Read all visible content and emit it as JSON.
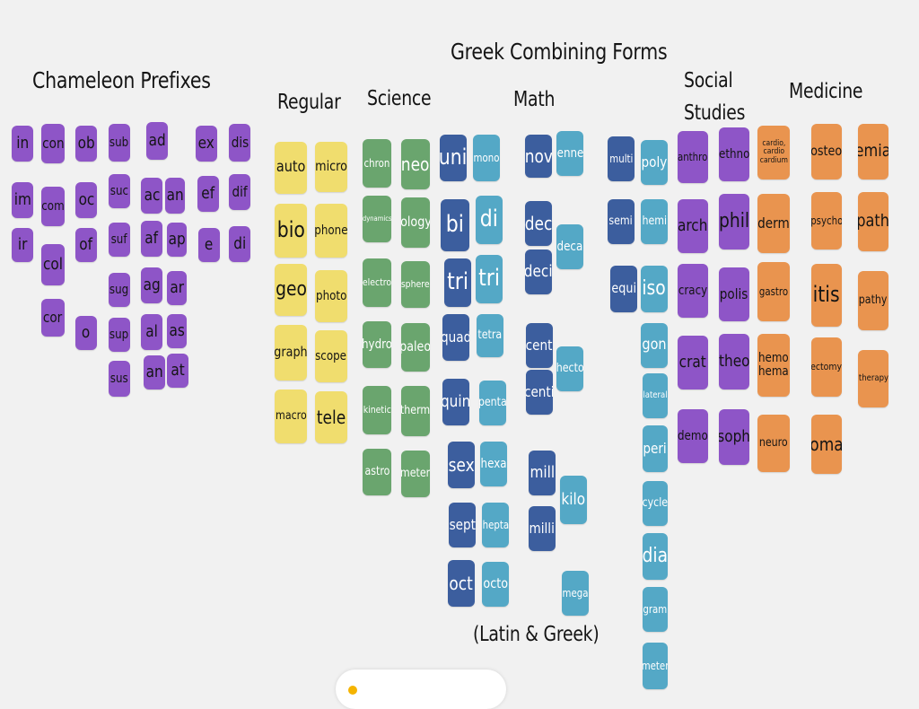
{
  "headings": {
    "chameleon": "Chameleon Prefixes",
    "greek": "Greek Combining Forms",
    "regular": "Regular",
    "science": "Science",
    "math": "Math",
    "social": "Social Studies",
    "medicine": "Medicine",
    "latin_greek": "(Latin & Greek)"
  },
  "colors": {
    "purple": "#8e55c7",
    "yellow": "#f0dd6e",
    "green": "#6aa56e",
    "dark_blue": "#3c5e9e",
    "teal": "#54a8c6",
    "orange": "#e9944f"
  },
  "tiles": {
    "chameleon": [
      "in",
      "con",
      "ob",
      "sub",
      "ad",
      "ex",
      "dis",
      "im",
      "com",
      "oc",
      "suc",
      "ac",
      "an",
      "ef",
      "dif",
      "ir",
      "col",
      "of",
      "suf",
      "af",
      "ap",
      "e",
      "di",
      "sug",
      "ag",
      "ar",
      "cor",
      "o",
      "sup",
      "al",
      "as",
      "sus",
      "an",
      "at"
    ],
    "regular": [
      "auto",
      "micro",
      "bio",
      "phone",
      "geo",
      "photo",
      "graph",
      "scope",
      "macro",
      "tele"
    ],
    "science": [
      "chron",
      "neo",
      "dynamics",
      "ology",
      "electro",
      "sphere",
      "hydro",
      "paleo",
      "kinetic",
      "therm",
      "astro",
      "meter"
    ],
    "math": [
      "uni",
      "mono",
      "bi",
      "di",
      "tri",
      "tri",
      "quad",
      "tetra",
      "quin",
      "penta",
      "sex",
      "hexa",
      "sept",
      "hepta",
      "oct",
      "octo",
      "nov",
      "enne",
      "dec",
      "deca",
      "deci",
      "cent",
      "hecto",
      "centi",
      "mill",
      "kilo",
      "milli",
      "mega",
      "multi",
      "poly",
      "semi",
      "hemi",
      "equi",
      "iso",
      "gon",
      "lateral",
      "peri",
      "cycle",
      "dia",
      "gram",
      "meter"
    ],
    "social": [
      "anthro",
      "ethno",
      "arch",
      "phil",
      "cracy",
      "polis",
      "crat",
      "theo",
      "demo",
      "soph"
    ],
    "medicine": [
      "cardio, cardio cardium",
      "osteo",
      "emia",
      "derm",
      "psycho",
      "path",
      "gastro",
      "itis",
      "pathy",
      "hemo hema",
      "ectomy",
      "therapy",
      "neuro",
      "oma"
    ]
  }
}
